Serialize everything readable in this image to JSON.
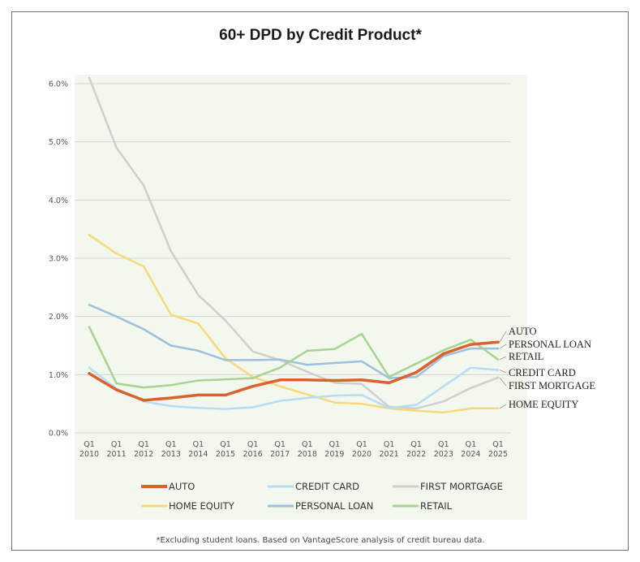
{
  "chart_data": {
    "type": "line",
    "title": "60+ DPD by Credit Product*",
    "footnote": "*Excluding student loans. Based on VantageScore analysis of credit bureau data.",
    "ylim": [
      0,
      6.0
    ],
    "yticks": [
      "0.0%",
      "1.0%",
      "2.0%",
      "3.0%",
      "4.0%",
      "5.0%",
      "6.0%"
    ],
    "categories": [
      "Q1 2010",
      "Q1 2011",
      "Q1 2012",
      "Q1 2013",
      "Q1 2014",
      "Q1 2015",
      "Q1 2016",
      "Q1 2017",
      "Q1 2018",
      "Q1 2019",
      "Q1 2020",
      "Q1 2021",
      "Q1 2022",
      "Q1 2023",
      "Q1 2024",
      "Q1 2025"
    ],
    "xtick_top": [
      "Q1",
      "Q1",
      "Q1",
      "Q1",
      "Q1",
      "Q1",
      "Q1",
      "Q1",
      "Q1",
      "Q1",
      "Q1",
      "Q1",
      "Q1",
      "Q1",
      "Q1",
      "Q1"
    ],
    "xtick_bottom": [
      "2010",
      "2011",
      "2012",
      "2013",
      "2014",
      "2015",
      "2016",
      "2017",
      "2018",
      "2019",
      "2020",
      "2021",
      "2022",
      "2023",
      "2024",
      "2025"
    ],
    "series": [
      {
        "name": "FIRST MORTGAGE",
        "color": "#cfcfcf",
        "width": 2.5,
        "values": [
          6.1,
          4.9,
          4.25,
          3.12,
          2.37,
          1.93,
          1.4,
          1.25,
          1.05,
          0.86,
          0.84,
          0.45,
          0.42,
          0.54,
          0.77,
          0.95
        ]
      },
      {
        "name": "HOME EQUITY",
        "color": "#f8d878",
        "width": 2.5,
        "values": [
          3.4,
          3.08,
          2.86,
          2.03,
          1.88,
          1.28,
          0.96,
          0.8,
          0.66,
          0.52,
          0.5,
          0.42,
          0.38,
          0.35,
          0.42,
          0.42
        ]
      },
      {
        "name": "CREDIT CARD",
        "color": "#b8dcf5",
        "width": 2.5,
        "values": [
          1.12,
          0.76,
          0.54,
          0.46,
          0.43,
          0.41,
          0.44,
          0.55,
          0.6,
          0.64,
          0.65,
          0.43,
          0.48,
          0.8,
          1.12,
          1.08
        ]
      },
      {
        "name": "PERSONAL LOAN",
        "color": "#9cc0de",
        "width": 2.5,
        "values": [
          2.2,
          2.0,
          1.78,
          1.5,
          1.41,
          1.25,
          1.25,
          1.26,
          1.17,
          1.2,
          1.23,
          0.94,
          0.96,
          1.32,
          1.45,
          1.45
        ]
      },
      {
        "name": "RETAIL",
        "color": "#a8d390",
        "width": 2.5,
        "values": [
          1.82,
          0.85,
          0.78,
          0.82,
          0.9,
          0.92,
          0.94,
          1.12,
          1.41,
          1.44,
          1.7,
          0.96,
          1.19,
          1.42,
          1.6,
          1.26
        ]
      },
      {
        "name": "AUTO",
        "color": "#d9622e",
        "width": 3.5,
        "values": [
          1.02,
          0.74,
          0.56,
          0.6,
          0.65,
          0.65,
          0.8,
          0.91,
          0.91,
          0.9,
          0.91,
          0.86,
          1.04,
          1.36,
          1.52,
          1.56
        ]
      }
    ],
    "end_labels": [
      "AUTO",
      "PERSONAL LOAN",
      "RETAIL",
      "CREDIT CARD",
      "FIRST MORTGAGE",
      "HOME EQUITY"
    ],
    "legend": [
      {
        "name": "AUTO",
        "color": "#d9622e"
      },
      {
        "name": "CREDIT CARD",
        "color": "#b8dcf5"
      },
      {
        "name": "FIRST MORTGAGE",
        "color": "#cfcfcf"
      },
      {
        "name": "HOME EQUITY",
        "color": "#f8d878"
      },
      {
        "name": "PERSONAL LOAN",
        "color": "#9cc0de"
      },
      {
        "name": "RETAIL",
        "color": "#a8d390"
      }
    ],
    "legend_position": "bottom",
    "grid": true
  }
}
